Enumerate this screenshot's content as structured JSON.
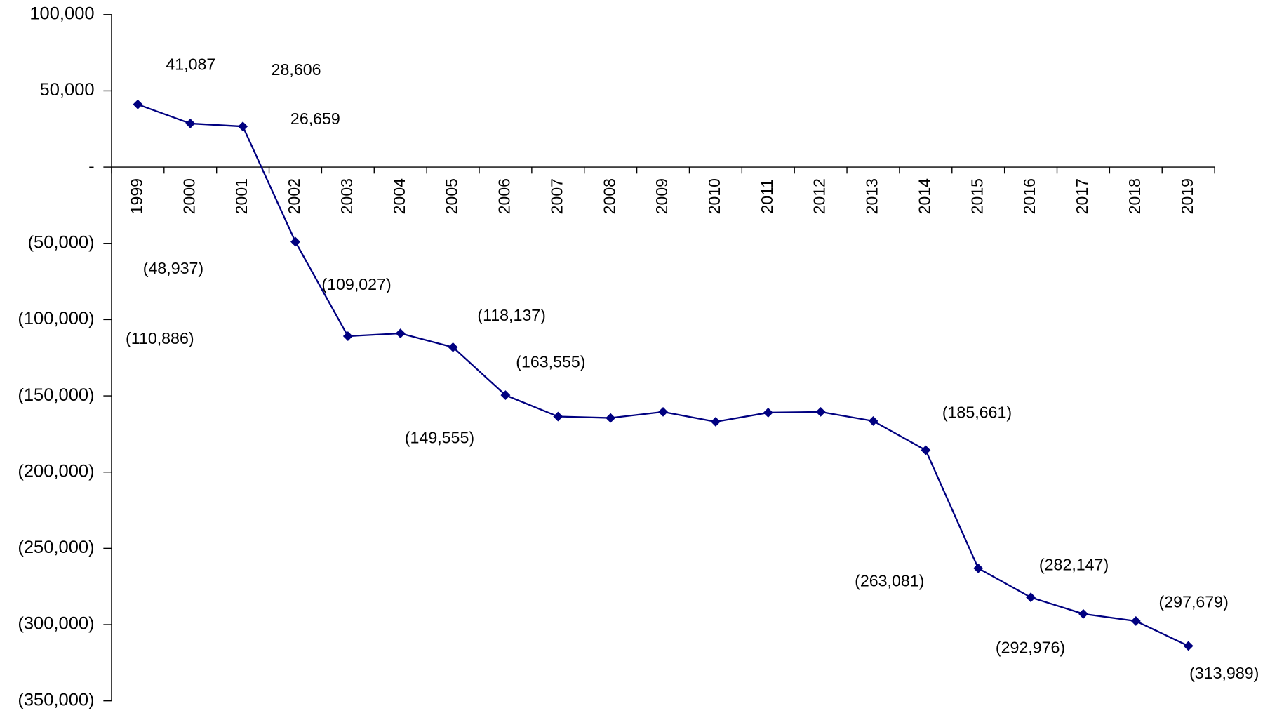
{
  "chart_data": {
    "type": "line",
    "categories": [
      "1999",
      "2000",
      "2001",
      "2002",
      "2003",
      "2004",
      "2005",
      "2006",
      "2007",
      "2008",
      "2009",
      "2010",
      "2011",
      "2012",
      "2013",
      "2014",
      "2015",
      "2016",
      "2017",
      "2018",
      "2019"
    ],
    "series": [
      {
        "color": "#000080",
        "values": [
          41087,
          28606,
          26659,
          -48937,
          -110886,
          -109027,
          -118137,
          -149555,
          -163555,
          -164500,
          -160500,
          -167000,
          -161000,
          -160500,
          -166500,
          -185661,
          -263081,
          -282147,
          -292976,
          -297679,
          -313989
        ],
        "value_labels": [
          "41,087",
          "28,606",
          "26,659",
          "(48,937)",
          "(110,886)",
          "(109,027)",
          "(118,137)",
          "(149,555)",
          "(163,555)",
          null,
          null,
          null,
          null,
          null,
          null,
          "(185,661)",
          "(263,081)",
          "(282,147)",
          "(292,976)",
          "(297,679)",
          "(313,989)"
        ]
      }
    ],
    "ylim": [
      -350000,
      100000
    ],
    "yticks": [
      {
        "value": -350000,
        "label": "(350,000)"
      },
      {
        "value": -300000,
        "label": "(300,000)"
      },
      {
        "value": -250000,
        "label": "(250,000)"
      },
      {
        "value": -200000,
        "label": "(200,000)"
      },
      {
        "value": -150000,
        "label": "(150,000)"
      },
      {
        "value": -100000,
        "label": "(100,000)"
      },
      {
        "value": -50000,
        "label": "(50,000)"
      },
      {
        "value": 0,
        "label": "-"
      },
      {
        "value": 50000,
        "label": "50,000"
      },
      {
        "value": 100000,
        "label": "100,000"
      }
    ]
  }
}
